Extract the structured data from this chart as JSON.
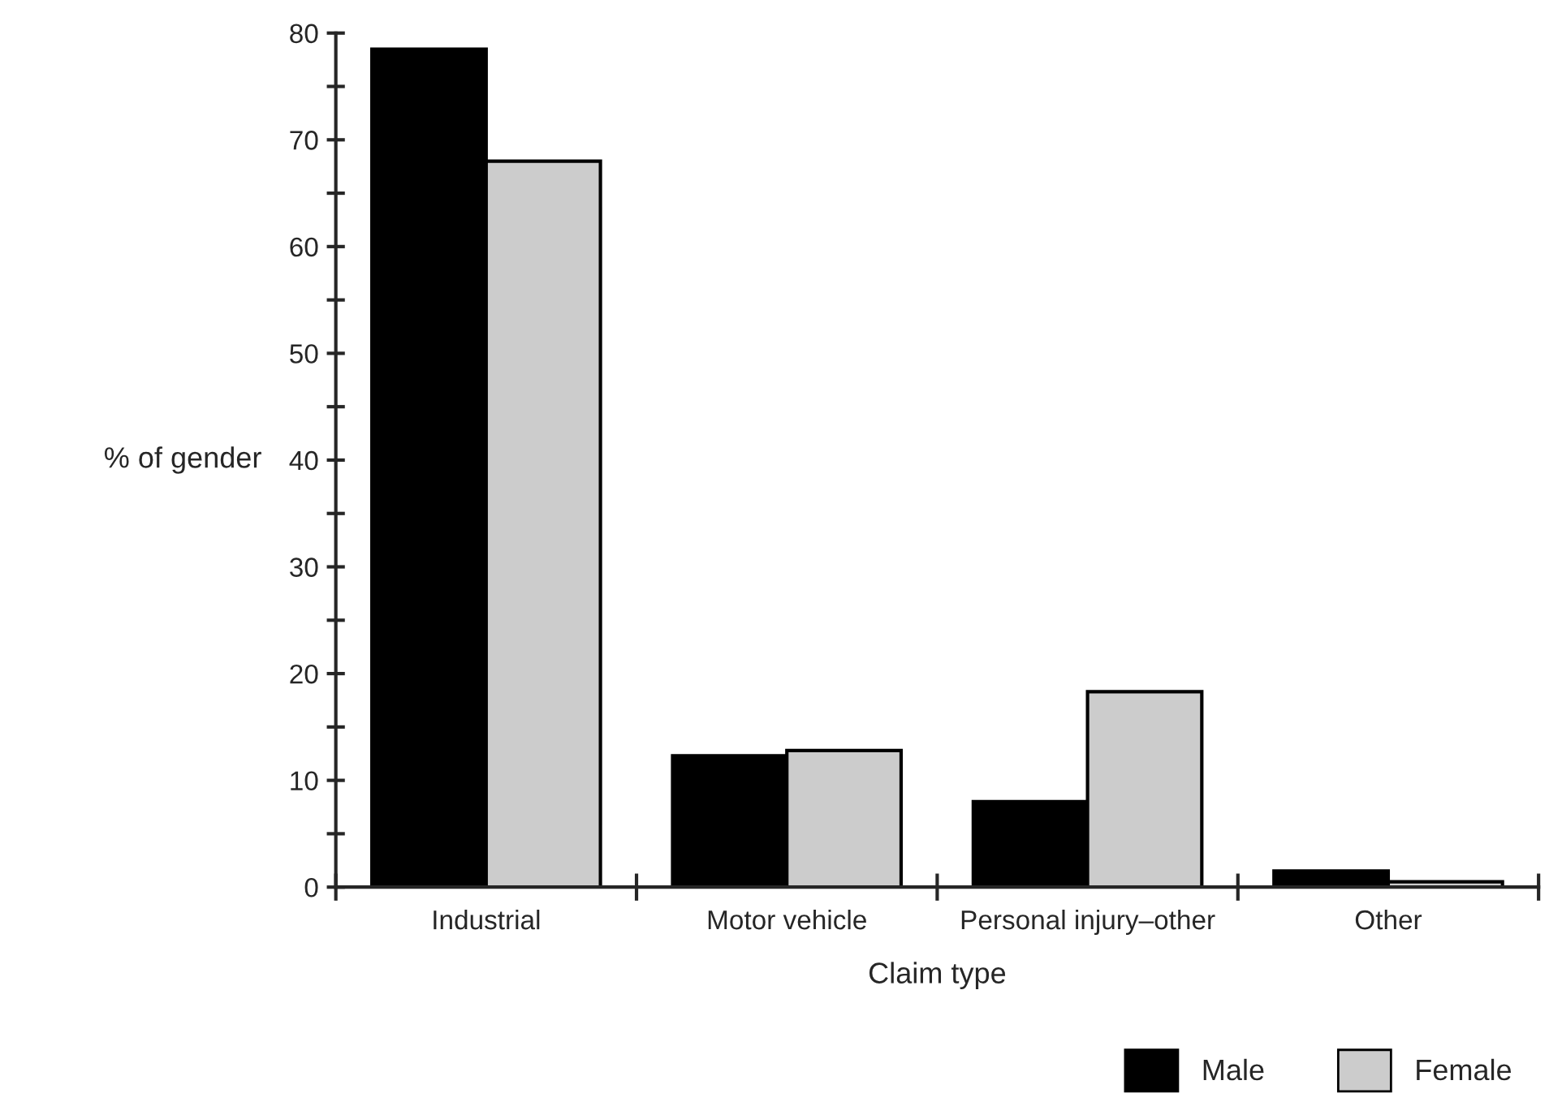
{
  "chart_data": {
    "type": "bar",
    "xlabel": "Claim type",
    "ylabel": "% of gender",
    "categories": [
      "Industrial",
      "Motor vehicle",
      "Personal injury–other",
      "Other"
    ],
    "series": [
      {
        "name": "Male",
        "color": "#000000",
        "values": [
          78.5,
          12.3,
          8.0,
          1.5
        ]
      },
      {
        "name": "Female",
        "color": "#cccccc",
        "values": [
          68.0,
          12.8,
          18.3,
          0.5
        ]
      }
    ],
    "ylim": [
      0,
      80
    ],
    "yticks": [
      0,
      {
        "value": 5,
        "label": null
      },
      10,
      {
        "value": 15,
        "label": null
      },
      20,
      {
        "value": 25,
        "label": null
      },
      30,
      {
        "value": 35,
        "label": null
      },
      40,
      {
        "value": 45,
        "label": null
      },
      50,
      {
        "value": 55,
        "label": null
      },
      60,
      {
        "value": 65,
        "label": null
      },
      70,
      {
        "value": 75,
        "label": null
      },
      80
    ],
    "grid": false,
    "legend": "bottom right"
  }
}
